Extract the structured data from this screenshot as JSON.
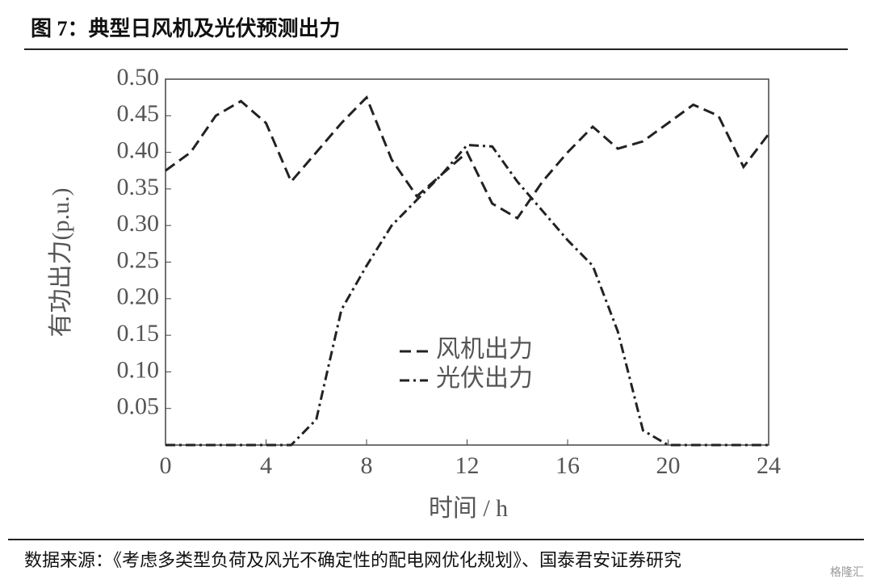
{
  "chart_data": {
    "type": "line",
    "title": "图 7：典型日风机及光伏预测出力",
    "source": "数据来源：《考虑多类型负荷及风光不确定性的配电网优化规划》、国泰君安证券研究",
    "watermark": "格隆汇",
    "x_label": "时间 / h",
    "y_label": "有功出力(p.u.)",
    "x": [
      0,
      1,
      2,
      3,
      4,
      5,
      6,
      7,
      8,
      9,
      10,
      11,
      12,
      13,
      14,
      15,
      16,
      17,
      18,
      19,
      20,
      21,
      22,
      23,
      24
    ],
    "series": [
      {
        "name": "风机出力",
        "color": "#222222",
        "dash": "14 7",
        "values": [
          0.375,
          0.4,
          0.45,
          0.47,
          0.44,
          0.36,
          0.4,
          0.44,
          0.475,
          0.39,
          0.34,
          0.37,
          0.4,
          0.33,
          0.31,
          0.36,
          0.4,
          0.435,
          0.405,
          0.415,
          0.44,
          0.465,
          0.45,
          0.38,
          0.425
        ]
      },
      {
        "name": "光伏出力",
        "color": "#222222",
        "dash": "12 5 3 5",
        "values": [
          0,
          0,
          0,
          0,
          0,
          0,
          0.035,
          0.185,
          0.245,
          0.3,
          0.335,
          0.37,
          0.41,
          0.408,
          0.36,
          0.32,
          0.28,
          0.245,
          0.155,
          0.02,
          0,
          0,
          0,
          0,
          0
        ]
      }
    ],
    "xlim": [
      0,
      24
    ],
    "ylim": [
      0,
      0.5
    ],
    "xticks": [
      0,
      4,
      8,
      12,
      16,
      20,
      24
    ],
    "yticks": [
      0.05,
      {
        "value": 0.1,
        "label": "0.10"
      },
      0.15,
      {
        "value": 0.2,
        "label": "0.20"
      },
      0.25,
      {
        "value": 0.3,
        "label": "0.30"
      },
      0.35,
      {
        "value": 0.4,
        "label": "0.40"
      },
      0.45,
      {
        "value": 0.5,
        "label": "0.50"
      }
    ]
  }
}
